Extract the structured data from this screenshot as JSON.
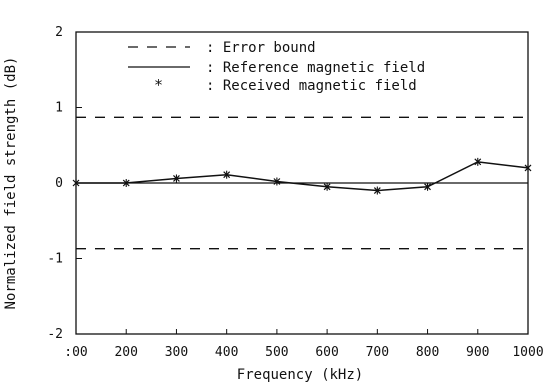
{
  "chart_data": {
    "type": "line",
    "xlabel": "Frequency (kHz)",
    "ylabel": "Normalized field strength (dB)",
    "xlim": [
      100,
      1000
    ],
    "ylim": [
      -2,
      2
    ],
    "x_ticks": [
      ":00",
      "200",
      "300",
      "400",
      "500",
      "600",
      "700",
      "800",
      "900",
      "1000"
    ],
    "y_ticks": [
      "2",
      "1",
      "0",
      "-1",
      "-2"
    ],
    "grid": false,
    "legend_position": "top",
    "series": [
      {
        "name": "Error bound",
        "style": "dashed",
        "marker": "- - -",
        "x": [
          100,
          1000
        ],
        "y": [
          0.87,
          0.87
        ]
      },
      {
        "name": "Error bound",
        "style": "dashed",
        "show_in_legend": false,
        "x": [
          100,
          1000
        ],
        "y": [
          -0.87,
          -0.87
        ]
      },
      {
        "name": "Reference magnetic field",
        "style": "solid",
        "marker": "——",
        "x": [
          100,
          1000
        ],
        "y": [
          0,
          0
        ]
      },
      {
        "name": "Received magnetic field",
        "style": "solid-with-markers",
        "marker": "*",
        "x": [
          100,
          200,
          300,
          400,
          500,
          600,
          700,
          800,
          900,
          1000
        ],
        "y": [
          0.0,
          0.0,
          0.06,
          0.11,
          0.02,
          -0.05,
          -0.1,
          -0.05,
          0.28,
          0.2
        ]
      }
    ],
    "legend": [
      {
        "marker": "- - -",
        "label": ": Error bound"
      },
      {
        "marker": "———",
        "label": ": Reference magnetic field"
      },
      {
        "marker": "*",
        "label": ": Received magnetic field"
      }
    ]
  }
}
